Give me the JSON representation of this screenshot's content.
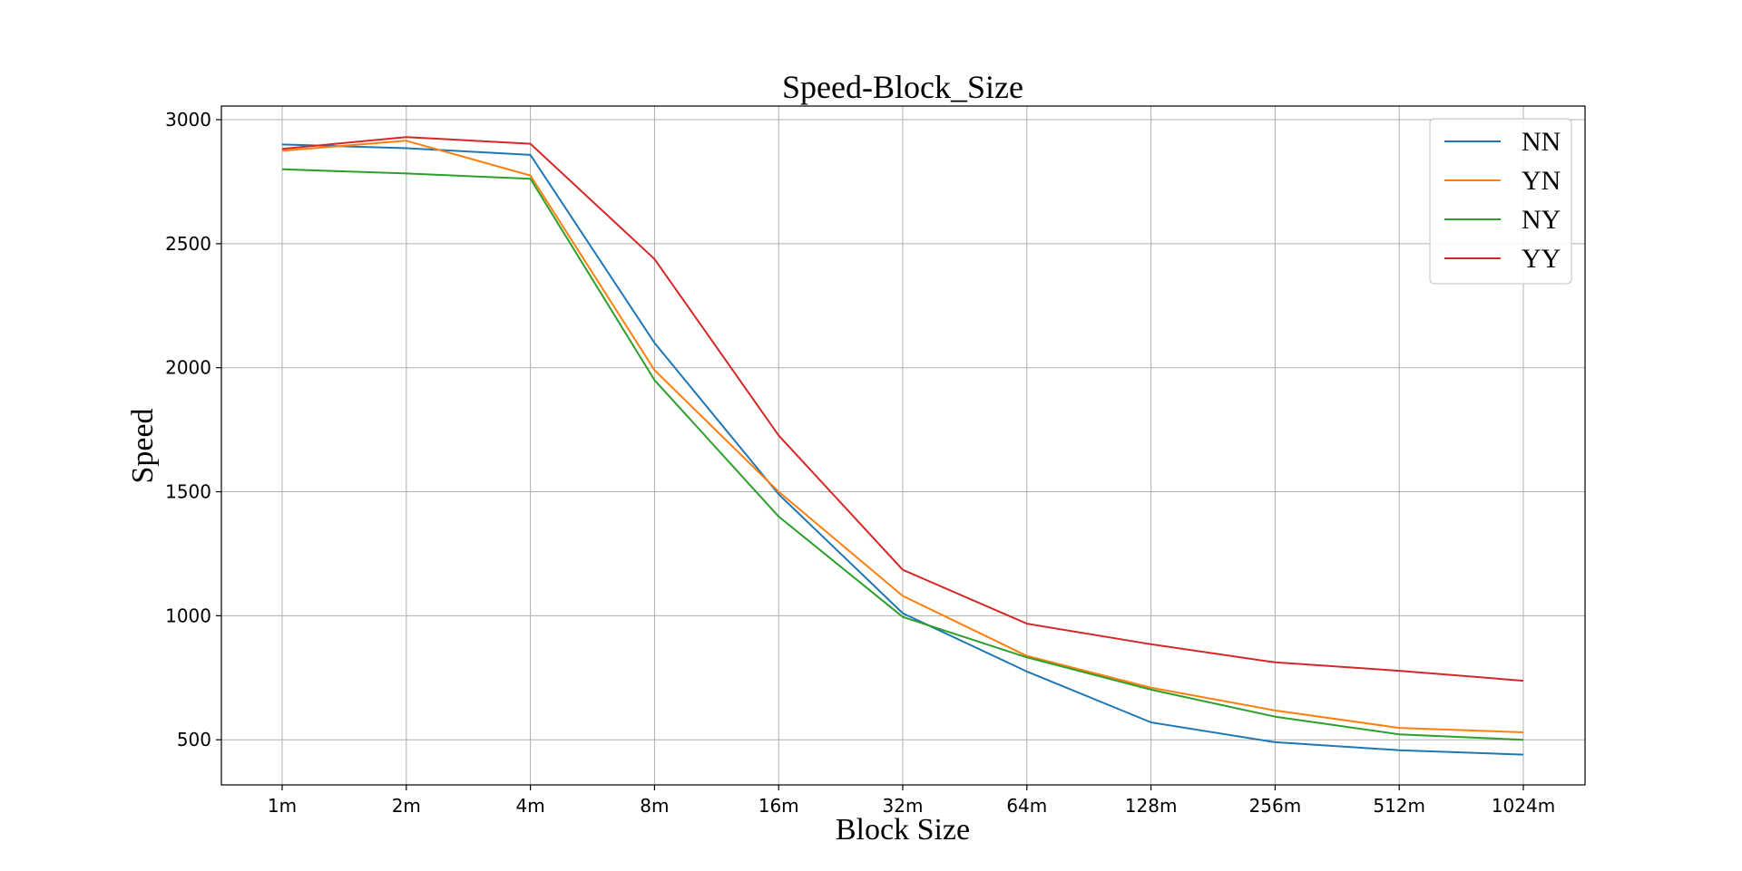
{
  "chart_data": {
    "type": "line",
    "title": "Speed-Block_Size",
    "xlabel": "Block Size",
    "ylabel": "Speed",
    "categories": [
      "1m",
      "2m",
      "4m",
      "8m",
      "16m",
      "32m",
      "64m",
      "128m",
      "256m",
      "512m",
      "1024m"
    ],
    "yticks": [
      500,
      1000,
      1500,
      2000,
      2500,
      3000
    ],
    "ylim": [
      318,
      3055
    ],
    "grid": true,
    "legend_position": "top-right",
    "series": [
      {
        "name": "NN",
        "color": "#1f77b4",
        "values": [
          2900,
          2885,
          2858,
          2100,
          1490,
          1010,
          775,
          570,
          490,
          458,
          440
        ]
      },
      {
        "name": "YN",
        "color": "#ff7f0e",
        "values": [
          2875,
          2915,
          2775,
          1990,
          1500,
          1080,
          838,
          710,
          618,
          548,
          530
        ]
      },
      {
        "name": "NY",
        "color": "#2ca02c",
        "values": [
          2800,
          2783,
          2762,
          1950,
          1400,
          995,
          832,
          702,
          593,
          522,
          500
        ]
      },
      {
        "name": "YY",
        "color": "#d62728",
        "values": [
          2882,
          2930,
          2903,
          2438,
          1727,
          1185,
          968,
          885,
          812,
          778,
          738
        ]
      }
    ]
  }
}
